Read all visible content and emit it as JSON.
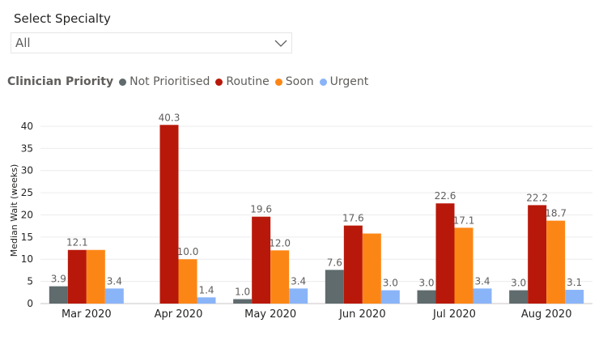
{
  "slicer": {
    "title": "Select Specialty",
    "selected": "All"
  },
  "legend": {
    "title": "Clinician Priority"
  },
  "icons": {
    "dropdown": "chevron-down-icon"
  },
  "chart_data": {
    "type": "bar",
    "categories": [
      "Mar 2020",
      "Apr 2020",
      "May 2020",
      "Jun 2020",
      "Jul 2020",
      "Aug 2020"
    ],
    "series": [
      {
        "name": "Not Prioritised",
        "color": "#5f6b6d",
        "values": [
          3.9,
          null,
          1.0,
          7.6,
          3.0,
          3.0
        ],
        "labels": [
          "3.9",
          "",
          "1.0",
          "7.6",
          "3.0",
          "3.0"
        ]
      },
      {
        "name": "Routine",
        "color": "#b8180a",
        "values": [
          12.1,
          40.3,
          19.6,
          17.6,
          22.6,
          22.2
        ],
        "labels": [
          "12.1",
          "40.3",
          "19.6",
          "17.6",
          "22.6",
          "22.2"
        ]
      },
      {
        "name": "Soon",
        "color": "#fc8615",
        "values": [
          12.1,
          10.0,
          12.0,
          15.8,
          17.1,
          18.7
        ],
        "labels": [
          "",
          "10.0",
          "12.0",
          "",
          "17.1",
          "18.7"
        ]
      },
      {
        "name": "Urgent",
        "color": "#8ab4f8",
        "values": [
          3.4,
          1.4,
          3.4,
          3.0,
          3.4,
          3.1
        ],
        "labels": [
          "3.4",
          "1.4",
          "3.4",
          "3.0",
          "3.4",
          "3.1"
        ]
      }
    ],
    "ylabel": "Median Wait (weeks)",
    "xlabel": "",
    "ylim": [
      0,
      42
    ],
    "yticks": [
      0,
      5,
      10,
      15,
      20,
      25,
      30,
      35,
      40
    ],
    "grid": true,
    "legend_position": "top-left"
  }
}
